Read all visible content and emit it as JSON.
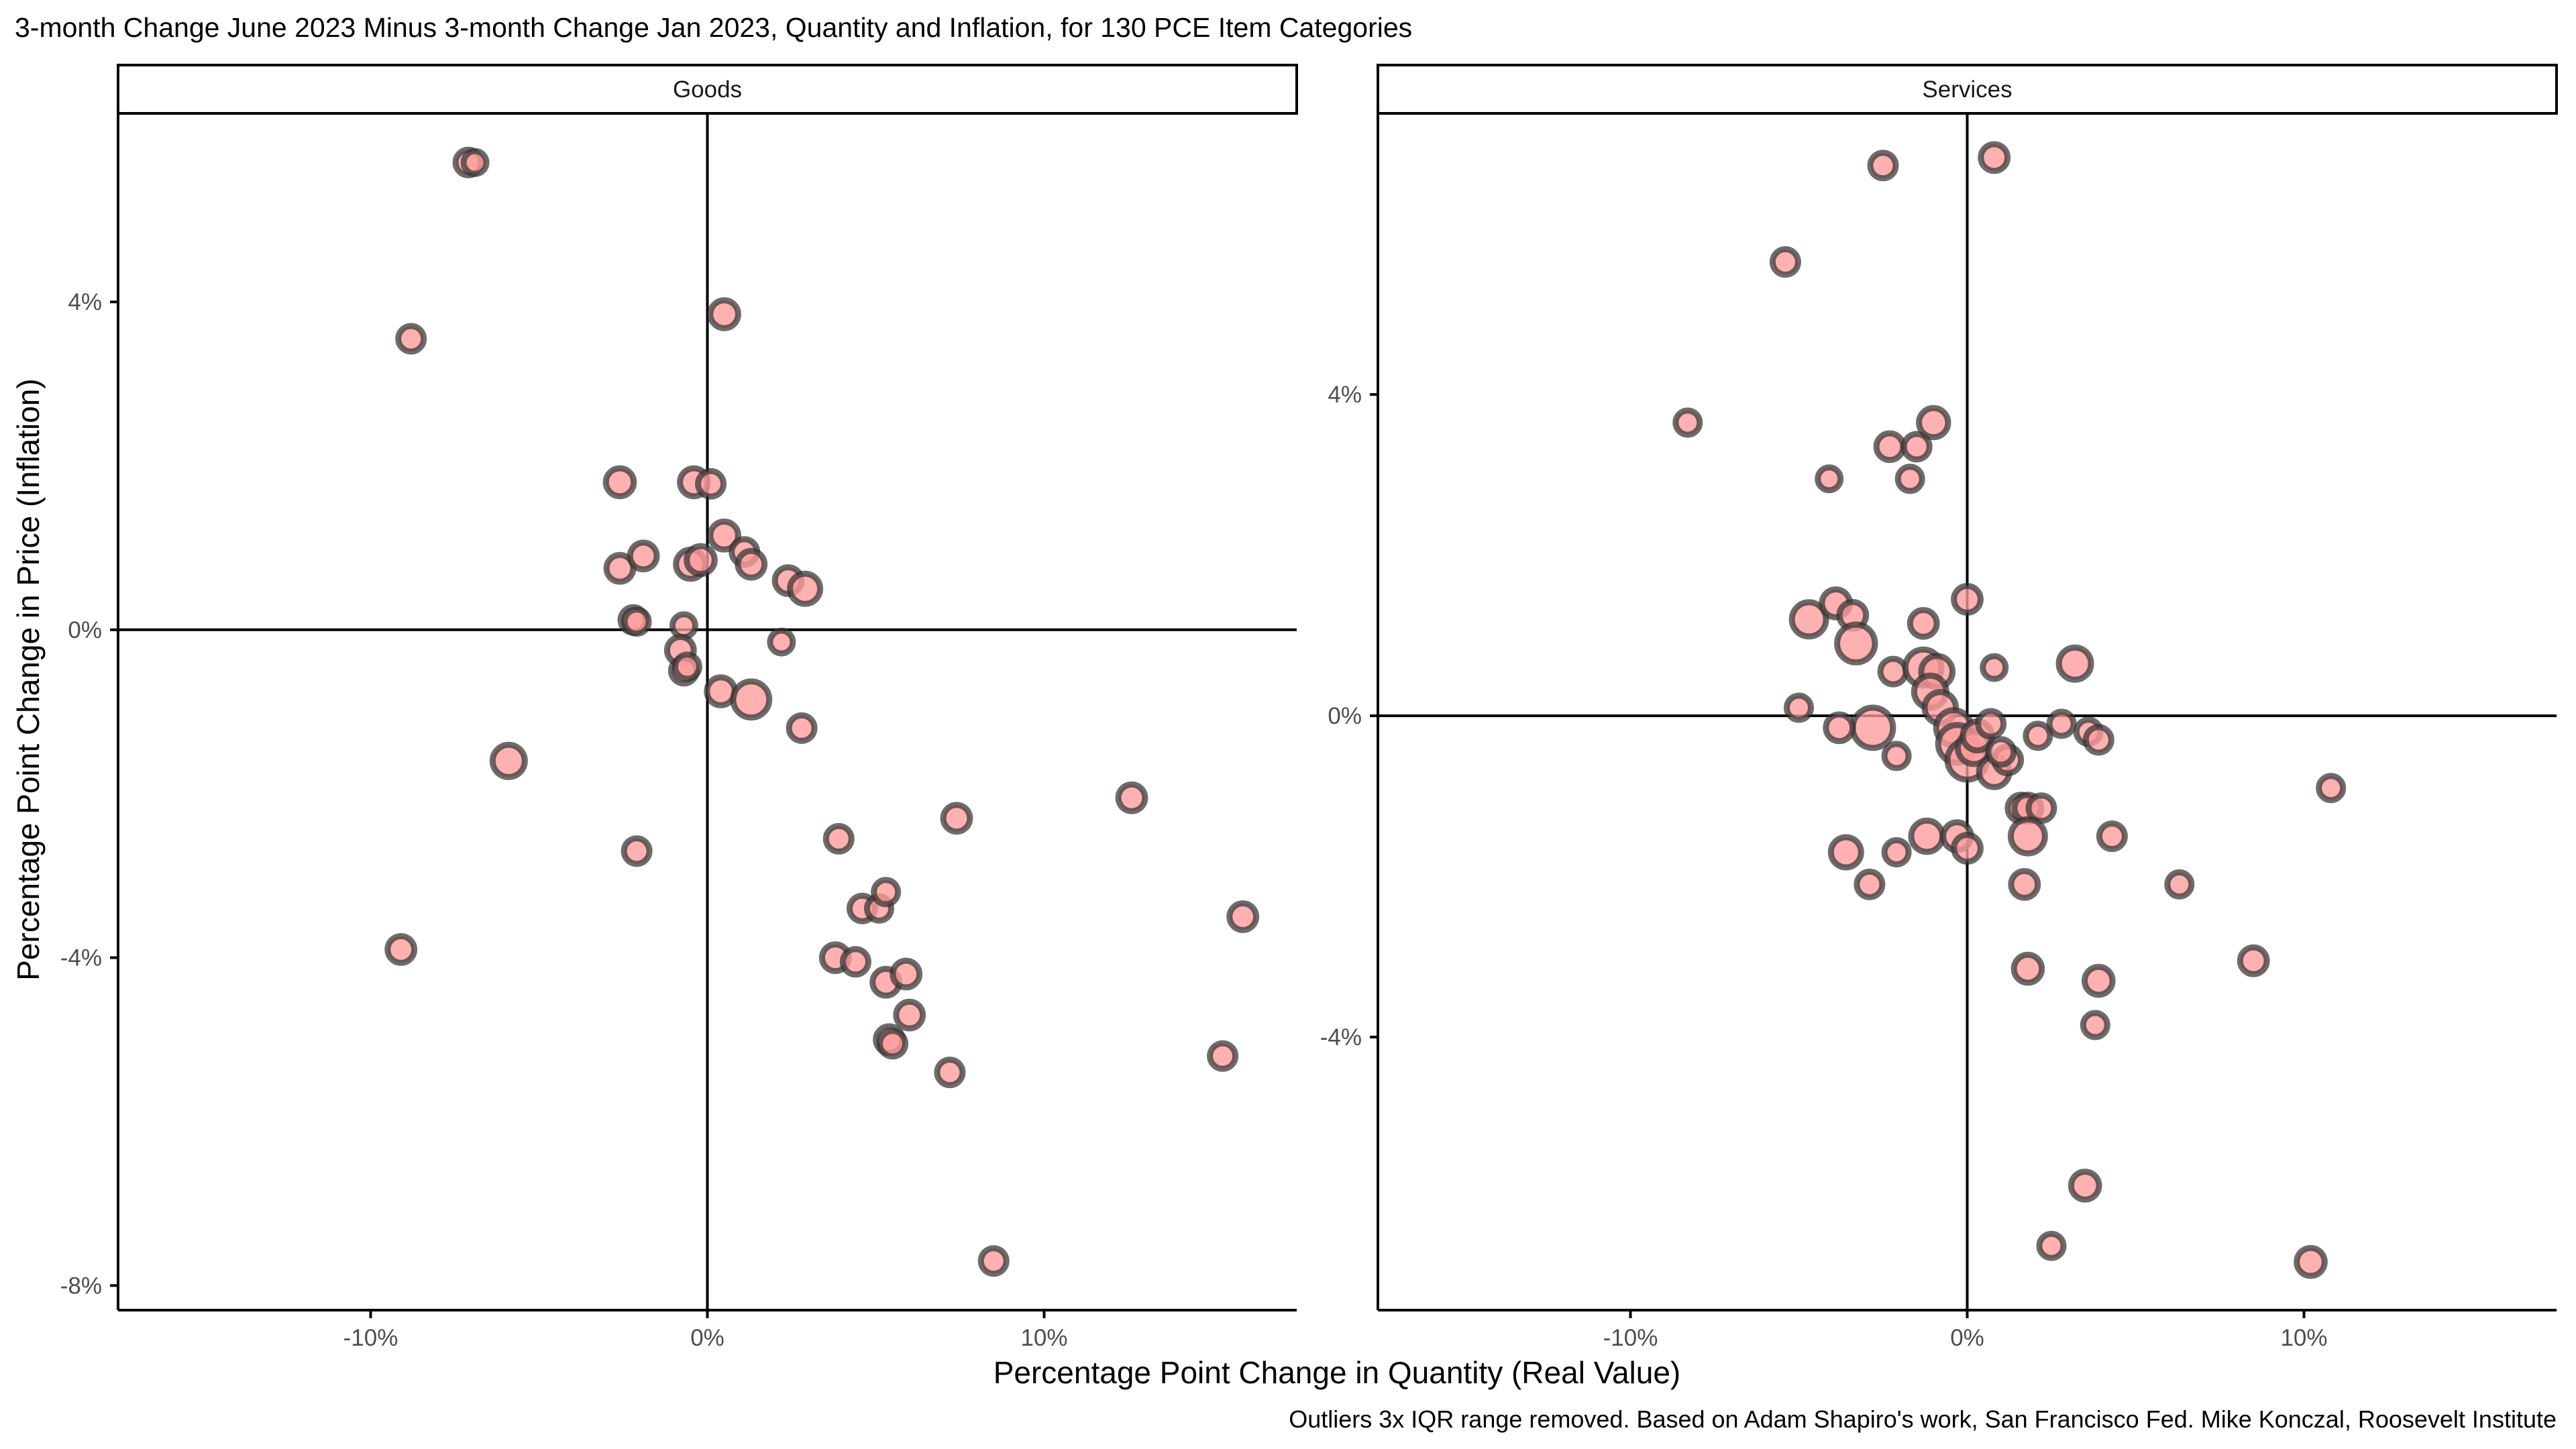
{
  "title": "3-month Change June 2023 Minus 3-month Change Jan 2023, Quantity and Inflation, for 130 PCE Item Categories",
  "xlabel": "Percentage Point Change in Quantity (Real Value)",
  "ylabel": "Percentage Point Change in Price (Inflation)",
  "caption": "Outliers 3x IQR range removed. Based on Adam Shapiro's work, San Francisco Fed. Mike Konczal, Roosevelt Institute",
  "colors": {
    "point_fill": "#ff9b9b",
    "point_stroke": "#333333",
    "axis": "#000000",
    "tick_label": "#4d4d4d"
  },
  "chart_data": [
    {
      "type": "scatter",
      "panel": "Goods",
      "xlim": [
        -17.5,
        17.5
      ],
      "ylim": [
        -8.3,
        6.3
      ],
      "x_ticks": [
        {
          "value": -10,
          "label": "-10%"
        },
        {
          "value": 0,
          "label": "0%"
        },
        {
          "value": 10,
          "label": "10%"
        }
      ],
      "y_ticks": [
        {
          "value": -8,
          "label": "-8%"
        },
        {
          "value": -4,
          "label": "-4%"
        },
        {
          "value": 0,
          "label": "0%"
        },
        {
          "value": 4,
          "label": "4%"
        }
      ],
      "points": [
        {
          "x": -7.1,
          "y": 5.7,
          "size": 1
        },
        {
          "x": -6.9,
          "y": 5.7,
          "size": 0.8
        },
        {
          "x": -8.8,
          "y": 3.55,
          "size": 1
        },
        {
          "x": 0.5,
          "y": 3.85,
          "size": 1.2
        },
        {
          "x": -2.6,
          "y": 1.8,
          "size": 1.2
        },
        {
          "x": -0.4,
          "y": 1.8,
          "size": 1.2
        },
        {
          "x": 0.1,
          "y": 1.78,
          "size": 1
        },
        {
          "x": -2.6,
          "y": 0.75,
          "size": 1.1
        },
        {
          "x": -1.9,
          "y": 0.9,
          "size": 1.1
        },
        {
          "x": -0.5,
          "y": 0.8,
          "size": 1.3
        },
        {
          "x": -0.2,
          "y": 0.85,
          "size": 1.2
        },
        {
          "x": 0.5,
          "y": 1.15,
          "size": 1.2
        },
        {
          "x": 1.1,
          "y": 0.95,
          "size": 1
        },
        {
          "x": 1.3,
          "y": 0.8,
          "size": 1.1
        },
        {
          "x": 2.4,
          "y": 0.6,
          "size": 1.1
        },
        {
          "x": 2.9,
          "y": 0.5,
          "size": 1.4
        },
        {
          "x": -2.2,
          "y": 0.12,
          "size": 1
        },
        {
          "x": -2.1,
          "y": 0.1,
          "size": 0.9
        },
        {
          "x": -0.7,
          "y": 0.05,
          "size": 0.8
        },
        {
          "x": 2.2,
          "y": -0.15,
          "size": 0.8
        },
        {
          "x": -0.8,
          "y": -0.25,
          "size": 1.1
        },
        {
          "x": -0.7,
          "y": -0.5,
          "size": 1
        },
        {
          "x": -0.6,
          "y": -0.45,
          "size": 0.9
        },
        {
          "x": 0.4,
          "y": -0.75,
          "size": 1.2
        },
        {
          "x": 1.3,
          "y": -0.85,
          "size": 2
        },
        {
          "x": 2.8,
          "y": -1.2,
          "size": 1
        },
        {
          "x": -5.9,
          "y": -1.6,
          "size": 1.6
        },
        {
          "x": -2.1,
          "y": -2.7,
          "size": 1
        },
        {
          "x": -9.1,
          "y": -3.9,
          "size": 1.1
        },
        {
          "x": 3.9,
          "y": -2.55,
          "size": 1
        },
        {
          "x": 7.4,
          "y": -2.3,
          "size": 1.1
        },
        {
          "x": 12.6,
          "y": -2.05,
          "size": 1.1
        },
        {
          "x": 15.9,
          "y": -3.5,
          "size": 1.1
        },
        {
          "x": 15.3,
          "y": -5.2,
          "size": 1
        },
        {
          "x": 4.6,
          "y": -3.4,
          "size": 1
        },
        {
          "x": 5.1,
          "y": -3.4,
          "size": 0.9
        },
        {
          "x": 5.3,
          "y": -3.2,
          "size": 0.9
        },
        {
          "x": 3.8,
          "y": -4.0,
          "size": 1.1
        },
        {
          "x": 4.4,
          "y": -4.05,
          "size": 1
        },
        {
          "x": 5.3,
          "y": -4.3,
          "size": 1.1
        },
        {
          "x": 5.9,
          "y": -4.2,
          "size": 1.1
        },
        {
          "x": 6.0,
          "y": -4.7,
          "size": 1.1
        },
        {
          "x": 5.4,
          "y": -5.0,
          "size": 1.1
        },
        {
          "x": 5.5,
          "y": -5.05,
          "size": 1
        },
        {
          "x": 7.2,
          "y": -5.4,
          "size": 1
        },
        {
          "x": 8.5,
          "y": -7.7,
          "size": 1
        }
      ]
    },
    {
      "type": "scatter",
      "panel": "Services",
      "xlim": [
        -17.5,
        17.5
      ],
      "ylim": [
        -7.4,
        7.5
      ],
      "x_ticks": [
        {
          "value": -10,
          "label": "-10%"
        },
        {
          "value": 0,
          "label": "0%"
        },
        {
          "value": 10,
          "label": "10%"
        }
      ],
      "y_ticks": [
        {
          "value": -4,
          "label": "-4%"
        },
        {
          "value": 0,
          "label": "0%"
        },
        {
          "value": 4,
          "label": "4%"
        }
      ],
      "points": [
        {
          "x": -2.5,
          "y": 6.85,
          "size": 1
        },
        {
          "x": 0.8,
          "y": 6.95,
          "size": 1.1
        },
        {
          "x": -5.4,
          "y": 5.65,
          "size": 1
        },
        {
          "x": -8.3,
          "y": 3.65,
          "size": 0.9
        },
        {
          "x": -2.3,
          "y": 3.35,
          "size": 1.1
        },
        {
          "x": -1.5,
          "y": 3.35,
          "size": 1
        },
        {
          "x": -1.0,
          "y": 3.65,
          "size": 1.3
        },
        {
          "x": -4.1,
          "y": 2.95,
          "size": 0.8
        },
        {
          "x": -1.7,
          "y": 2.95,
          "size": 0.9
        },
        {
          "x": -4.7,
          "y": 1.2,
          "size": 1.8
        },
        {
          "x": -3.9,
          "y": 1.4,
          "size": 1.2
        },
        {
          "x": -3.4,
          "y": 1.25,
          "size": 1.1
        },
        {
          "x": -1.3,
          "y": 1.15,
          "size": 1.1
        },
        {
          "x": 0.0,
          "y": 1.45,
          "size": 1.1
        },
        {
          "x": -3.3,
          "y": 0.9,
          "size": 2.2
        },
        {
          "x": -2.2,
          "y": 0.55,
          "size": 1
        },
        {
          "x": -1.3,
          "y": 0.6,
          "size": 2
        },
        {
          "x": -0.9,
          "y": 0.55,
          "size": 1.5
        },
        {
          "x": 0.8,
          "y": 0.6,
          "size": 0.8
        },
        {
          "x": 3.2,
          "y": 0.65,
          "size": 1.6
        },
        {
          "x": -1.1,
          "y": 0.3,
          "size": 1.6
        },
        {
          "x": -0.8,
          "y": 0.1,
          "size": 1.5
        },
        {
          "x": -5.0,
          "y": 0.1,
          "size": 0.9
        },
        {
          "x": -2.8,
          "y": -0.15,
          "size": 2.5
        },
        {
          "x": -3.8,
          "y": -0.15,
          "size": 1.1
        },
        {
          "x": -0.4,
          "y": -0.15,
          "size": 1.9
        },
        {
          "x": -0.3,
          "y": -0.35,
          "size": 2.2
        },
        {
          "x": 0.0,
          "y": -0.55,
          "size": 2.4
        },
        {
          "x": 0.2,
          "y": -0.4,
          "size": 1.6
        },
        {
          "x": 0.3,
          "y": -0.25,
          "size": 1.3
        },
        {
          "x": 0.7,
          "y": -0.1,
          "size": 1
        },
        {
          "x": 0.8,
          "y": -0.7,
          "size": 1.4
        },
        {
          "x": 1.2,
          "y": -0.55,
          "size": 1.1
        },
        {
          "x": 1.0,
          "y": -0.45,
          "size": 1
        },
        {
          "x": 2.8,
          "y": -0.1,
          "size": 0.9
        },
        {
          "x": 2.1,
          "y": -0.25,
          "size": 0.9
        },
        {
          "x": 3.6,
          "y": -0.2,
          "size": 0.9
        },
        {
          "x": 3.9,
          "y": -0.3,
          "size": 1
        },
        {
          "x": -2.1,
          "y": -0.5,
          "size": 0.9
        },
        {
          "x": 1.6,
          "y": -1.15,
          "size": 1.1
        },
        {
          "x": 1.8,
          "y": -1.15,
          "size": 1.1
        },
        {
          "x": 2.2,
          "y": -1.15,
          "size": 1
        },
        {
          "x": -1.2,
          "y": -1.5,
          "size": 1.5
        },
        {
          "x": -0.3,
          "y": -1.5,
          "size": 1.2
        },
        {
          "x": 0.0,
          "y": -1.65,
          "size": 1.1
        },
        {
          "x": 1.8,
          "y": -1.5,
          "size": 1.8
        },
        {
          "x": 4.3,
          "y": -1.5,
          "size": 1
        },
        {
          "x": -3.6,
          "y": -1.7,
          "size": 1.4
        },
        {
          "x": -2.1,
          "y": -1.7,
          "size": 0.9
        },
        {
          "x": -2.9,
          "y": -2.1,
          "size": 1
        },
        {
          "x": 1.7,
          "y": -2.1,
          "size": 1.1
        },
        {
          "x": 6.3,
          "y": -2.1,
          "size": 0.9
        },
        {
          "x": 10.8,
          "y": -0.9,
          "size": 0.9
        },
        {
          "x": 1.8,
          "y": -3.15,
          "size": 1.2
        },
        {
          "x": 3.9,
          "y": -3.3,
          "size": 1.2
        },
        {
          "x": 8.5,
          "y": -3.05,
          "size": 1.1
        },
        {
          "x": 3.8,
          "y": -3.85,
          "size": 0.9
        },
        {
          "x": 3.5,
          "y": -5.85,
          "size": 1.2
        },
        {
          "x": 2.5,
          "y": -6.6,
          "size": 0.9
        },
        {
          "x": 10.2,
          "y": -6.8,
          "size": 1.2
        }
      ]
    }
  ]
}
